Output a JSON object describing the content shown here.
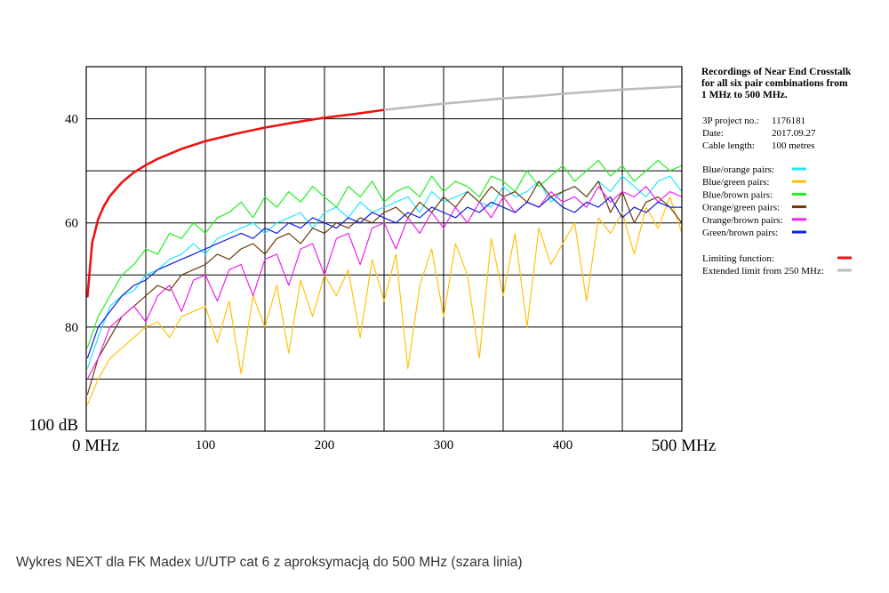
{
  "caption": "Wykres NEXT dla FK Madex U/UTP cat 6 z aproksymacją do 500 MHz (szara linia)",
  "chart_data": {
    "type": "line",
    "title": "Recordings of Near End Crosstalk for all six pair combinations from 1 MHz to 500 MHz.",
    "title_lines": [
      "Recordings of Near End Crosstalk",
      "for all six pair combinations from",
      "1 MHz to 500 MHz."
    ],
    "info": [
      {
        "label": "3P project no.:",
        "value": "1176181"
      },
      {
        "label": "Date:",
        "value": "2017.09.27"
      },
      {
        "label": "Cable length:",
        "value": "100 metres"
      }
    ],
    "x_ticks": [
      {
        "value": 0,
        "label": "0 MHz",
        "big": true
      },
      {
        "value": 100,
        "label": "100",
        "big": false
      },
      {
        "value": 200,
        "label": "200",
        "big": false
      },
      {
        "value": 300,
        "label": "300",
        "big": false
      },
      {
        "value": 400,
        "label": "400",
        "big": false
      },
      {
        "value": 500,
        "label": "500 MHz",
        "big": true
      }
    ],
    "y_ticks": [
      {
        "value": 40,
        "label": "40",
        "big": false
      },
      {
        "value": 60,
        "label": "60",
        "big": false
      },
      {
        "value": 80,
        "label": "80",
        "big": false
      },
      {
        "value": 100,
        "label": "100 dB",
        "big": true
      }
    ],
    "xlim": [
      0,
      500
    ],
    "ylim": [
      30,
      100
    ],
    "y_inverted": true,
    "grid": true,
    "legend_position": "right",
    "series": [
      {
        "name": "Blue/orange pairs:",
        "color": "#22e6ff",
        "x": [
          1,
          10,
          20,
          30,
          40,
          50,
          60,
          70,
          80,
          90,
          100,
          110,
          120,
          130,
          140,
          150,
          160,
          170,
          180,
          190,
          200,
          210,
          220,
          230,
          240,
          250,
          260,
          270,
          280,
          290,
          300,
          310,
          320,
          330,
          340,
          350,
          360,
          370,
          380,
          390,
          400,
          410,
          420,
          430,
          440,
          450,
          460,
          470,
          480,
          490,
          500
        ],
        "y": [
          88,
          82,
          76,
          74,
          73,
          70,
          69,
          67,
          66,
          64,
          66,
          63,
          62,
          61,
          60,
          62,
          60,
          59,
          58,
          61,
          58,
          57,
          59,
          56,
          58,
          57,
          56,
          55,
          58,
          54,
          56,
          55,
          54,
          56,
          57,
          53,
          55,
          54,
          52,
          56,
          54,
          53,
          55,
          52,
          54,
          51,
          53,
          55,
          52,
          51,
          54
        ]
      },
      {
        "name": "Blue/green pairs:",
        "color": "#ffc20e",
        "x": [
          1,
          10,
          20,
          30,
          40,
          50,
          60,
          70,
          80,
          90,
          100,
          110,
          120,
          130,
          140,
          150,
          160,
          170,
          180,
          190,
          200,
          210,
          220,
          230,
          240,
          250,
          260,
          270,
          280,
          290,
          300,
          310,
          320,
          330,
          340,
          350,
          360,
          370,
          380,
          390,
          400,
          410,
          420,
          430,
          440,
          450,
          460,
          470,
          480,
          490,
          500
        ],
        "y": [
          95,
          90,
          86,
          84,
          82,
          80,
          79,
          82,
          78,
          77,
          76,
          83,
          75,
          89,
          74,
          80,
          72,
          85,
          71,
          78,
          70,
          74,
          69,
          82,
          67,
          75,
          66,
          88,
          72,
          65,
          78,
          64,
          70,
          86,
          63,
          74,
          62,
          80,
          61,
          68,
          64,
          60,
          75,
          59,
          62,
          58,
          66,
          57,
          61,
          55,
          62
        ]
      },
      {
        "name": "Blue/brown pairs:",
        "color": "#22ee22",
        "x": [
          1,
          10,
          20,
          30,
          40,
          50,
          60,
          70,
          80,
          90,
          100,
          110,
          120,
          130,
          140,
          150,
          160,
          170,
          180,
          190,
          200,
          210,
          220,
          230,
          240,
          250,
          260,
          270,
          280,
          290,
          300,
          310,
          320,
          330,
          340,
          350,
          360,
          370,
          380,
          390,
          400,
          410,
          420,
          430,
          440,
          450,
          460,
          470,
          480,
          490,
          500
        ],
        "y": [
          84,
          78,
          74,
          70,
          68,
          65,
          66,
          62,
          63,
          60,
          62,
          59,
          58,
          56,
          59,
          55,
          57,
          54,
          56,
          53,
          55,
          57,
          53,
          55,
          52,
          56,
          54,
          53,
          55,
          51,
          54,
          52,
          53,
          55,
          51,
          52,
          54,
          50,
          53,
          51,
          49,
          52,
          50,
          48,
          51,
          49,
          52,
          50,
          48,
          50,
          49
        ]
      },
      {
        "name": "Orange/green pairs:",
        "color": "#6b3a0d",
        "x": [
          1,
          10,
          20,
          30,
          40,
          50,
          60,
          70,
          80,
          90,
          100,
          110,
          120,
          130,
          140,
          150,
          160,
          170,
          180,
          190,
          200,
          210,
          220,
          230,
          240,
          250,
          260,
          270,
          280,
          290,
          300,
          310,
          320,
          330,
          340,
          350,
          360,
          370,
          380,
          390,
          400,
          410,
          420,
          430,
          440,
          450,
          460,
          470,
          480,
          490,
          500
        ],
        "y": [
          93,
          86,
          82,
          78,
          76,
          74,
          72,
          73,
          70,
          69,
          68,
          66,
          67,
          65,
          64,
          66,
          63,
          62,
          64,
          61,
          62,
          60,
          61,
          59,
          60,
          58,
          57,
          59,
          56,
          58,
          55,
          57,
          54,
          56,
          53,
          55,
          54,
          56,
          52,
          55,
          54,
          53,
          55,
          52,
          58,
          54,
          60,
          56,
          55,
          57,
          60
        ]
      },
      {
        "name": "Orange/brown pairs:",
        "color": "#ee22ee",
        "x": [
          1,
          10,
          20,
          30,
          40,
          50,
          60,
          70,
          80,
          90,
          100,
          110,
          120,
          130,
          140,
          150,
          160,
          170,
          180,
          190,
          200,
          210,
          220,
          230,
          240,
          250,
          260,
          270,
          280,
          290,
          300,
          310,
          320,
          330,
          340,
          350,
          360,
          370,
          380,
          390,
          400,
          410,
          420,
          430,
          440,
          450,
          460,
          470,
          480,
          490,
          500
        ],
        "y": [
          90,
          86,
          80,
          78,
          76,
          79,
          74,
          72,
          77,
          71,
          70,
          75,
          69,
          68,
          74,
          67,
          66,
          72,
          65,
          64,
          70,
          63,
          62,
          68,
          61,
          60,
          65,
          59,
          62,
          58,
          61,
          57,
          60,
          56,
          59,
          55,
          58,
          56,
          57,
          54,
          56,
          55,
          57,
          53,
          56,
          54,
          55,
          53,
          56,
          54,
          55
        ]
      },
      {
        "name": "Green/brown pairs:",
        "color": "#1020e0",
        "x": [
          1,
          10,
          20,
          30,
          40,
          50,
          60,
          70,
          80,
          90,
          100,
          110,
          120,
          130,
          140,
          150,
          160,
          170,
          180,
          190,
          200,
          210,
          220,
          230,
          240,
          250,
          260,
          270,
          280,
          290,
          300,
          310,
          320,
          330,
          340,
          350,
          360,
          370,
          380,
          390,
          400,
          410,
          420,
          430,
          440,
          450,
          460,
          470,
          480,
          490,
          500
        ],
        "y": [
          86,
          80,
          77,
          74,
          72,
          71,
          69,
          68,
          67,
          66,
          65,
          64,
          63,
          62,
          63,
          61,
          62,
          60,
          61,
          59,
          60,
          61,
          59,
          60,
          58,
          59,
          60,
          58,
          59,
          57,
          58,
          59,
          57,
          58,
          56,
          57,
          58,
          56,
          57,
          55,
          57,
          58,
          56,
          57,
          55,
          59,
          57,
          58,
          56,
          57,
          57
        ]
      }
    ],
    "limits": [
      {
        "name": "Limiting function:",
        "color": "#ee1111",
        "x": [
          1,
          5,
          10,
          15,
          20,
          30,
          40,
          50,
          60,
          80,
          100,
          125,
          150,
          175,
          200,
          225,
          250
        ],
        "y": [
          74.3,
          63.8,
          59.3,
          56.7,
          54.8,
          52.2,
          50.3,
          48.9,
          47.7,
          45.8,
          44.3,
          42.9,
          41.7,
          40.7,
          39.8,
          39.1,
          38.3
        ]
      },
      {
        "name": "Extended limit from 250 MHz:",
        "color": "#bbbbbb",
        "x": [
          250,
          275,
          300,
          325,
          350,
          375,
          400,
          425,
          450,
          475,
          500
        ],
        "y": [
          38.3,
          37.7,
          37.1,
          36.6,
          36.1,
          35.7,
          35.2,
          34.8,
          34.4,
          34.1,
          33.8
        ]
      }
    ]
  }
}
